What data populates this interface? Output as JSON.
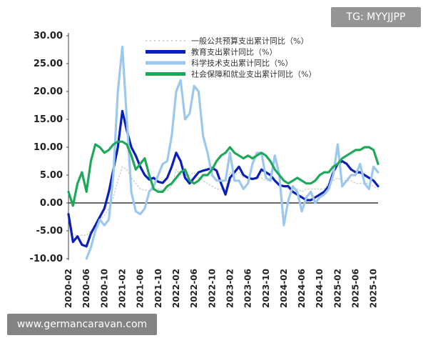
{
  "watermarks": {
    "top": "TG: MYYJJPP",
    "bottom": "www.germancaravan.com"
  },
  "chart_data": {
    "type": "line",
    "title": "",
    "xlabel": "",
    "ylabel": "",
    "ylim": [
      -10,
      30
    ],
    "yticks": [
      "30.00",
      "25.00",
      "20.00",
      "15.00",
      "10.00",
      "5.00",
      "0.00",
      "-5.00",
      "-10.00"
    ],
    "ytick_values": [
      30,
      25,
      20,
      15,
      10,
      5,
      0,
      -5,
      -10
    ],
    "xticks": [
      "2020-02",
      "2020-06",
      "2020-10",
      "2021-02",
      "2021-06",
      "2021-10",
      "2022-02",
      "2022-06",
      "2022-10",
      "2023-02",
      "2023-06",
      "2023-10",
      "2024-02",
      "2024-06",
      "2024-10",
      "2025-02",
      "2025-06",
      "2025-10"
    ],
    "legend_position": "top",
    "grid": false,
    "x": [
      "2020-02",
      "2020-03",
      "2020-04",
      "2020-05",
      "2020-06",
      "2020-07",
      "2020-08",
      "2020-09",
      "2020-10",
      "2020-11",
      "2020-12",
      "2021-01",
      "2021-02",
      "2021-03",
      "2021-04",
      "2021-05",
      "2021-06",
      "2021-07",
      "2021-08",
      "2021-09",
      "2021-10",
      "2021-11",
      "2021-12",
      "2022-01",
      "2022-02",
      "2022-03",
      "2022-04",
      "2022-05",
      "2022-06",
      "2022-07",
      "2022-08",
      "2022-09",
      "2022-10",
      "2022-11",
      "2022-12",
      "2023-01",
      "2023-02",
      "2023-03",
      "2023-04",
      "2023-05",
      "2023-06",
      "2023-07",
      "2023-08",
      "2023-09",
      "2023-10",
      "2023-11",
      "2023-12",
      "2024-01",
      "2024-02",
      "2024-03",
      "2024-04",
      "2024-05",
      "2024-06",
      "2024-07",
      "2024-08",
      "2024-09",
      "2024-10",
      "2024-11",
      "2024-12",
      "2025-01",
      "2025-02",
      "2025-03",
      "2025-04",
      "2025-05",
      "2025-06",
      "2025-07",
      "2025-08",
      "2025-09",
      "2025-10",
      "2025-11"
    ],
    "series": [
      {
        "name": "一般公共预算支出累计同比（%）",
        "color": "#d0d0d0",
        "dash": "dotted",
        "width": 1.5,
        "values": [
          -2.0,
          -5.5,
          -6.0,
          -5.8,
          -5.8,
          -5.0,
          -4.0,
          -3.0,
          -2.3,
          -1.0,
          1.0,
          4.0,
          6.5,
          6.0,
          4.5,
          3.5,
          2.5,
          2.3,
          2.2,
          2.3,
          2.5,
          2.3,
          2.2,
          3.0,
          6.0,
          5.0,
          5.0,
          5.0,
          5.5,
          4.5,
          4.0,
          3.5,
          3.0,
          2.5,
          2.5,
          2.5,
          5.5,
          5.0,
          5.5,
          4.5,
          4.5,
          4.5,
          4.5,
          4.5,
          4.0,
          4.0,
          4.0,
          3.5,
          3.0,
          2.5,
          2.5,
          2.5,
          2.0,
          2.5,
          2.5,
          2.5,
          2.5,
          2.5,
          3.5,
          4.0,
          4.5,
          4.0,
          4.0,
          4.0,
          3.5,
          3.5,
          3.5,
          3.5,
          3.0,
          2.5
        ]
      },
      {
        "name": "教育支出累计同比（%）",
        "color": "#0a1fb8",
        "dash": "solid",
        "width": 3.2,
        "values": [
          -2.0,
          -7.0,
          -6.0,
          -7.5,
          -7.8,
          -5.5,
          -4.0,
          -2.5,
          -1.0,
          2.0,
          6.0,
          10.0,
          16.5,
          13.0,
          10.0,
          8.5,
          6.5,
          5.0,
          4.2,
          4.5,
          3.8,
          3.6,
          4.5,
          6.5,
          9.0,
          7.5,
          4.5,
          3.5,
          4.5,
          5.5,
          5.8,
          6.0,
          6.3,
          5.8,
          3.5,
          1.5,
          4.5,
          5.5,
          6.5,
          5.0,
          4.5,
          4.3,
          4.5,
          6.0,
          5.5,
          5.0,
          4.0,
          3.2,
          3.0,
          3.0,
          2.0,
          1.5,
          1.0,
          0.5,
          0.5,
          1.0,
          1.5,
          2.0,
          3.0,
          5.5,
          7.0,
          7.5,
          7.0,
          6.0,
          5.5,
          5.5,
          5.0,
          4.5,
          4.0,
          3.0
        ]
      },
      {
        "name": "科学技术支出累计同比（%）",
        "color": "#9cc8f0",
        "dash": "solid",
        "width": 3.2,
        "values": [
          null,
          null,
          null,
          null,
          -10.0,
          -8.0,
          -5.0,
          -3.0,
          -4.0,
          -3.0,
          5.0,
          20.0,
          28.0,
          15.0,
          2.0,
          -1.5,
          -2.0,
          -1.0,
          2.0,
          3.0,
          5.0,
          7.0,
          7.5,
          12.0,
          20.0,
          22.0,
          15.0,
          16.0,
          21.0,
          20.0,
          12.0,
          9.0,
          5.0,
          4.0,
          4.0,
          4.0,
          9.0,
          4.0,
          4.0,
          2.5,
          3.5,
          7.0,
          9.0,
          9.0,
          4.5,
          4.0,
          8.5,
          5.0,
          -4.0,
          0.5,
          3.0,
          2.0,
          -1.5,
          1.0,
          2.0,
          0.0,
          1.0,
          1.5,
          2.5,
          5.0,
          10.5,
          3.0,
          4.0,
          5.0,
          5.0,
          7.0,
          3.5,
          2.5,
          6.5,
          5.5
        ]
      },
      {
        "name": "社会保障和就业支出累计同比（%）",
        "color": "#1ea85a",
        "dash": "solid",
        "width": 3.2,
        "values": [
          2.0,
          -0.5,
          3.5,
          5.5,
          2.0,
          7.5,
          10.5,
          10.0,
          9.0,
          9.5,
          10.5,
          11.0,
          11.0,
          10.5,
          8.5,
          6.0,
          7.0,
          8.0,
          5.0,
          2.5,
          2.0,
          2.0,
          3.0,
          3.5,
          4.5,
          5.5,
          6.0,
          4.0,
          3.5,
          4.0,
          5.0,
          5.0,
          6.0,
          7.5,
          8.5,
          9.0,
          10.0,
          9.0,
          8.5,
          8.0,
          8.5,
          8.0,
          8.5,
          9.0,
          8.5,
          7.5,
          6.0,
          5.0,
          4.0,
          3.5,
          4.0,
          4.5,
          4.0,
          3.5,
          3.5,
          4.0,
          5.0,
          5.5,
          5.5,
          6.5,
          7.0,
          8.0,
          8.5,
          9.0,
          9.5,
          9.5,
          10.0,
          10.0,
          9.5,
          7.0
        ]
      }
    ]
  }
}
